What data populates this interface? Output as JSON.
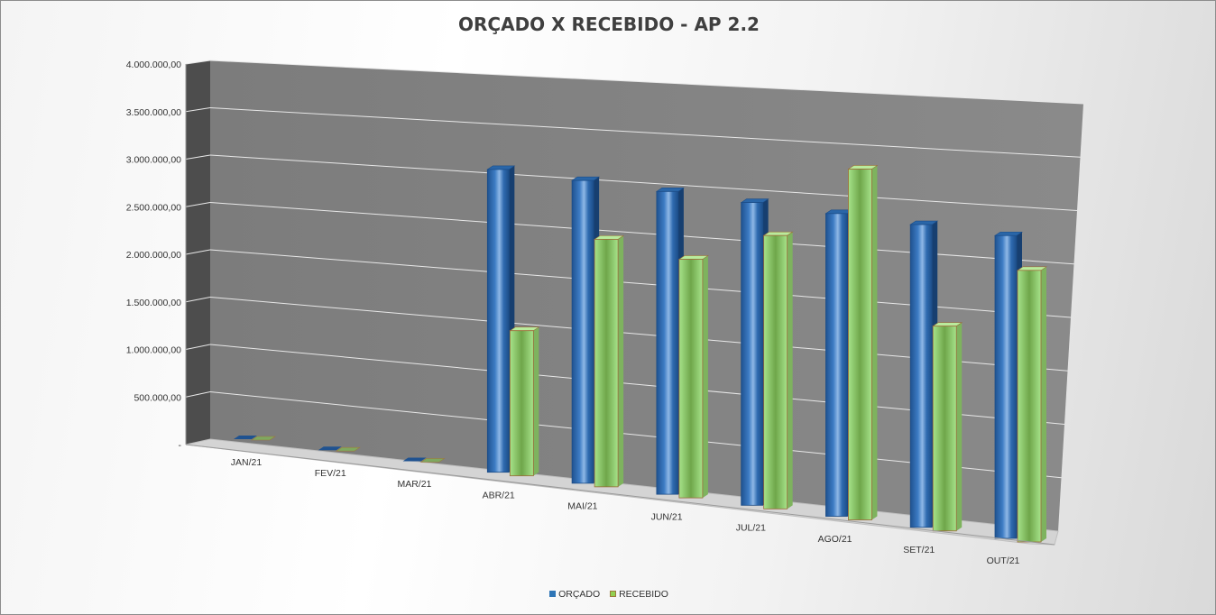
{
  "chart_data": {
    "type": "bar",
    "title": "ORÇADO X RECEBIDO - AP 2.2",
    "categories": [
      "JAN/21",
      "FEV/21",
      "MAR/21",
      "ABR/21",
      "MAI/21",
      "JUN/21",
      "JUL/21",
      "AGO/21",
      "SET/21",
      "OUT/21"
    ],
    "series": [
      {
        "name": "ORÇADO",
        "color": "#2e75b6",
        "values": [
          0,
          0,
          0,
          3400000,
          3400000,
          3400000,
          3400000,
          3400000,
          3400000,
          3400000
        ]
      },
      {
        "name": "RECEBIDO",
        "color": "#92d050",
        "values": [
          0,
          0,
          0,
          1630000,
          2780000,
          2680000,
          3070000,
          3940000,
          2300000,
          3050000
        ]
      }
    ],
    "y_tick_labels": [
      "-",
      "500.000,00",
      "1.000.000,00",
      "1.500.000,00",
      "2.000.000,00",
      "2.500.000,00",
      "3.000.000,00",
      "3.500.000,00",
      "4.000.000,00"
    ],
    "ylim": [
      0,
      4000000
    ],
    "legend_position": "bottom",
    "grid": true,
    "view": "3d-perspective"
  }
}
